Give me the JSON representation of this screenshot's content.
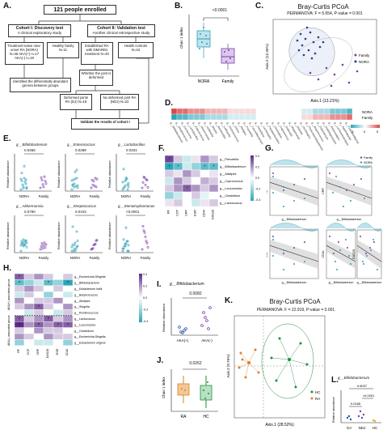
{
  "panels": [
    "A.",
    "B.",
    "C.",
    "D.",
    "E.",
    "F.",
    "G.",
    "H.",
    "I.",
    "J.",
    "K.",
    "L."
  ],
  "flowchart": {
    "top": "121 people enrolled",
    "cohort1_title": "Cohort I: Discovery test",
    "cohort1_sub": "A clinical exploratory study",
    "cohort2_title": "Cohort II: Validation test",
    "cohort2_sub": "Another clinical retrospective study",
    "nora_box": "Treatment-naive new-onset RA (NORA) N=36 AKA(+) n=17 AKA(-) n=19",
    "family_box": "Healthy family N=11",
    "established_box": "Established RA with DMARDs treatment N=40",
    "hc_box": "Health controls N=34",
    "identify_box": "Identified the differentially abundant genera between groups",
    "deformed_q": "Whether the joint is deformed",
    "dj_box": "Deformed joints RA (DJ) N=18",
    "ndj_box": "No deformed joint RA (NDJ) N=22",
    "validate_box": "Validate the results of cohort I"
  },
  "panelB": {
    "pvalue": "<0.0001",
    "ylabel": "Chao 1 index",
    "categories": [
      "NORA",
      "Family"
    ]
  },
  "panelC": {
    "title": "Bray-Curtis PCoA",
    "stats": "PERMANOVA: F = 5.654, P-value = 0.001",
    "xlabel": "Axis.1 (13.21%)",
    "ylabel": "Axis.2 (12.45%)",
    "legend": [
      "Family",
      "NORA"
    ]
  },
  "panelD": {
    "rows": [
      "NORA",
      "Family"
    ],
    "genera": [
      "g__Bifidobacterium",
      "g__Streptococcus",
      "g__Escherichia",
      "g__Lactobacillus",
      "g__Enterococcus",
      "g__Akkermansia",
      "g__Veillonella",
      "g__Blautia",
      "g__Bacteroides",
      "g__Collinsella",
      "g__Ruminococcus",
      "g__Dorea",
      "g__Alistipes",
      "g__Prevotella",
      "g__Faecalibacterium",
      "g__Roseburia",
      "g__Lachnospira",
      "g__Parabacteroides",
      "g__Clostridium",
      "g__Coprococcus",
      "g__Sutterella",
      "g__Megamonas",
      "g__Dialister",
      "g__Oscillospira",
      "g__Phascolarctobacterium",
      "g__Butyricicoccus",
      "g__Eubacterium",
      "g__Subdoligranulum",
      "g__Anaerostipes",
      "g__Lachnoclostridium",
      "g__Agathobacter",
      "g__Fusicatenibacter"
    ],
    "scale": [
      "-5",
      "0",
      "5"
    ],
    "row1_values": [
      5,
      4,
      4,
      3,
      3,
      3,
      2,
      2,
      2,
      2,
      1,
      1,
      1,
      1,
      1,
      0,
      0,
      0,
      0,
      0,
      0,
      0,
      0,
      -1,
      -1,
      -2,
      -2,
      -2,
      -3,
      -3,
      -3,
      -4
    ],
    "row2_values": [
      -5,
      -4,
      -4,
      -3,
      -3,
      -3,
      -2,
      -2,
      -2,
      -2,
      -1,
      -1,
      -1,
      -1,
      -1,
      0,
      0,
      0,
      0,
      0,
      0,
      0,
      0,
      1,
      1,
      2,
      2,
      2,
      3,
      3,
      3,
      4
    ]
  },
  "panelE": {
    "ylabel": "Relative abundance",
    "categories": [
      "NORA",
      "Family"
    ],
    "plots": [
      {
        "title": "g__Bifidobacterium",
        "p": "0.0466"
      },
      {
        "title": "g__Enterococcus",
        "p": "0.0288"
      },
      {
        "title": "g__Lactobacillus",
        "p": "0.0331"
      },
      {
        "title": "g__Akkermansia",
        "p": "0.0790"
      },
      {
        "title": "g__Streptococcus",
        "p": "0.0103"
      },
      {
        "title": "g__Stenotrophomonas",
        "p": "<0.0001"
      }
    ]
  },
  "panelF": {
    "rows": [
      "g__Prevotella",
      "g__Bifidobacterium",
      "g__Alistipes",
      "g__Coprococcus",
      "g__Leuconostoc",
      "g__Clostridium",
      "g__Lactococcus"
    ],
    "cols": [
      "RF",
      "CCP",
      "CRP",
      "ESR",
      "CDAI",
      "DAS28"
    ],
    "scale": [
      "0.4",
      "0.2",
      "0.0",
      "-0.2",
      "-0.4"
    ]
  },
  "panelG": {
    "xlabel": "g__Bifidobacterium",
    "legend": [
      "Family",
      "NORA"
    ],
    "plots": [
      "RF",
      "CRP",
      "CCP",
      "CDAI",
      "DAS28"
    ]
  },
  "panelH": {
    "rows": [
      "g__Escherichia-Shigella",
      "g__Bifidobacterium",
      "g__Eubacterium hallii",
      "g__Butyricicoccus",
      "g__Alistipes",
      "g__Shigella",
      "g__Ruminococcus",
      "g__Lactococcus",
      "g__Leuconostoc",
      "g__Clostridium",
      "g__Escherichia-Shigella",
      "g__Eubacterium eligens"
    ],
    "cols": [
      "RF",
      "CCP",
      "CRP",
      "DAS28",
      "ESR",
      "CDAI"
    ],
    "groups": [
      "AKA(+) associated genus",
      "AKA(-) associated genus"
    ],
    "scale": [
      "0.4",
      "0.2",
      "0.0",
      "-0.2",
      "-0.4"
    ]
  },
  "panelI": {
    "title": "g__Bifidobacterium",
    "p": "0.0082",
    "ylabel": "Relative abundance",
    "categories": [
      "AKA(+)",
      "AKA(-)"
    ]
  },
  "panelJ": {
    "p": "0.0262",
    "ylabel": "Chao 1 index",
    "categories": [
      "RA",
      "HC"
    ]
  },
  "panelK": {
    "title": "Bray-Curtis PCoA",
    "stats": "PERMANOVA: F = 22.919, P-value = 0.001",
    "xlabel": "Axis.1 (28.52%)",
    "ylabel": "Axis.2 (9.76%)",
    "legend": [
      "HC",
      "RA"
    ]
  },
  "panelL": {
    "title": "g__Bifidobacterium",
    "p_top": "0.6037",
    "p_mid": "<0.0001",
    "p_low": "0.0185",
    "ylabel": "Relative abundance",
    "categories": [
      "DJ",
      "NDJ",
      "HC"
    ]
  },
  "colors": {
    "nora": "#2f9fb6",
    "family": "#7b3fa8",
    "ra": "#d9822b",
    "hc": "#1e8f3a",
    "heat_pos": "#5b2a86",
    "heat_neg": "#2aa5b8",
    "dj": "#2455a4",
    "ndj": "#7b3fa8",
    "hcbar": "#e0b020"
  }
}
